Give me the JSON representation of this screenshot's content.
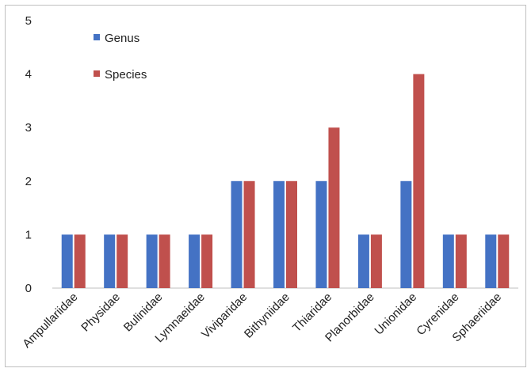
{
  "chart_data": {
    "type": "bar",
    "categories": [
      "Ampullariidae",
      "Physidae",
      "Bulinidae",
      "Lymnaeidae",
      "Viviparidae",
      "Bithyniidae",
      "Thiaridae",
      "Planorbidae",
      "Unionidae",
      "Cyrenidae",
      "Sphaeriidae"
    ],
    "series": [
      {
        "name": "Genus",
        "color": "#4472c4",
        "values": [
          1,
          1,
          1,
          1,
          2,
          2,
          2,
          1,
          2,
          1,
          1
        ]
      },
      {
        "name": "Species",
        "color": "#c0504d",
        "values": [
          1,
          1,
          1,
          1,
          2,
          2,
          3,
          1,
          4,
          1,
          1
        ]
      }
    ],
    "ylim": [
      0,
      5
    ],
    "yticks": [
      "0",
      "1",
      "2",
      "3",
      "4",
      "5"
    ],
    "grid": false,
    "legend_position": "top-left",
    "title": "",
    "xlabel": "",
    "ylabel": ""
  }
}
